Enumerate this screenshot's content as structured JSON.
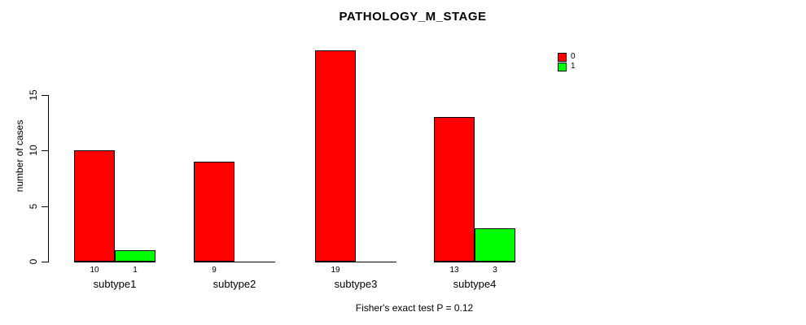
{
  "title": "PATHOLOGY_M_STAGE",
  "y_axis_title": "number of cases",
  "footer": "Fisher's exact test P = 0.12",
  "legend": {
    "entries": [
      {
        "label": "0",
        "color": "#FF0000"
      },
      {
        "label": "1",
        "color": "#00FF00"
      }
    ]
  },
  "chart_data": {
    "type": "bar",
    "title": "PATHOLOGY_M_STAGE",
    "xlabel": "",
    "ylabel": "number of cases",
    "categories": [
      "subtype1",
      "subtype2",
      "subtype3",
      "subtype4"
    ],
    "series": [
      {
        "name": "0",
        "color": "#FF0000",
        "values": [
          10,
          9,
          19,
          13
        ]
      },
      {
        "name": "1",
        "color": "#00FF00",
        "values": [
          1,
          0,
          0,
          3
        ]
      }
    ],
    "bar_count_labels_visible": true,
    "yticks": [
      0,
      5,
      10,
      15
    ],
    "ylim": [
      0,
      19
    ],
    "grid": false,
    "legend_position": "top-right",
    "annotation": "Fisher's exact test P = 0.12"
  }
}
